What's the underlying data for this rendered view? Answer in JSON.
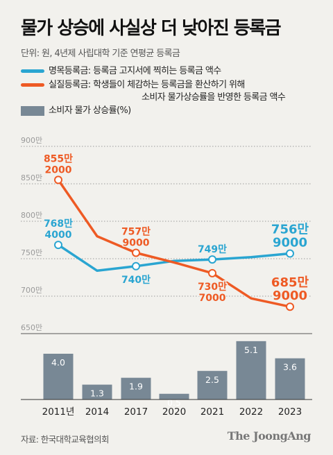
{
  "title": "물가 상승에 사실상 더 낮아진 등록금",
  "subtitle": "단위: 원, 4년제 사립대학 기준 연평균 등록금",
  "legend": {
    "nominal": "명목등록금: 등록금 고지서에 찍히는 등록금 액수",
    "real_line1": "실질등록금: 학생들이 체감하는 등록금을 환산하기 위해",
    "real_line2": "소비자 물가상승률을 반영한 등록금 액수",
    "cpi": "소비자 물가 상승률(%)"
  },
  "colors": {
    "nominal": "#2aa5d1",
    "real": "#ee5a24",
    "cpi": "#788895",
    "grid": "#9a9a9a"
  },
  "chart_data": {
    "type": "line",
    "categories": [
      "2011년",
      "2014",
      "2017",
      "2020",
      "2021",
      "2022",
      "2023"
    ],
    "y_ticks": [
      "900만",
      "850만",
      "800만",
      "750만",
      "700만",
      "650만"
    ],
    "ylim_line": [
      650,
      900
    ],
    "y_unit": "만원",
    "series": [
      {
        "name": "명목등록금",
        "key": "nominal",
        "values": [
          768.4,
          734,
          740,
          747,
          749,
          752,
          756.9
        ]
      },
      {
        "name": "실질등록금",
        "key": "real",
        "values": [
          855.2,
          780,
          757.9,
          745,
          730.7,
          697,
          685.9
        ]
      }
    ],
    "bars": {
      "name": "소비자 물가 상승률(%)",
      "key": "cpi",
      "values": [
        4.0,
        1.3,
        1.9,
        0.5,
        2.5,
        5.1,
        3.6
      ],
      "labels": [
        "4.0",
        "1.3",
        "1.9",
        "0.5",
        "2.5",
        "5.1",
        "3.6"
      ]
    },
    "annotations": [
      {
        "series": "real",
        "index": 0,
        "lines": [
          "855만",
          "2000"
        ],
        "pos": "above"
      },
      {
        "series": "nominal",
        "index": 0,
        "lines": [
          "768만",
          "4000"
        ],
        "pos": "above"
      },
      {
        "series": "real",
        "index": 2,
        "lines": [
          "757만",
          "9000"
        ],
        "pos": "above"
      },
      {
        "series": "nominal",
        "index": 2,
        "lines": [
          "740만"
        ],
        "pos": "below"
      },
      {
        "series": "nominal",
        "index": 4,
        "lines": [
          "749만"
        ],
        "pos": "above"
      },
      {
        "series": "real",
        "index": 4,
        "lines": [
          "730만",
          "7000"
        ],
        "pos": "below"
      },
      {
        "series": "nominal",
        "index": 6,
        "lines": [
          "756만",
          "9000"
        ],
        "pos": "above"
      },
      {
        "series": "real",
        "index": 6,
        "lines": [
          "685만",
          "9000"
        ],
        "pos": "above"
      }
    ]
  },
  "source": "자료: 한국대학교육협의회",
  "brand": "The JoongAng"
}
